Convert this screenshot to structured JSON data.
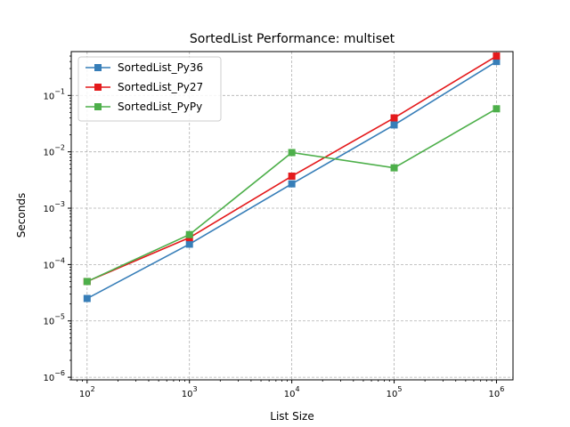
{
  "chart_data": {
    "type": "line",
    "title": "SortedList Performance: multiset",
    "xlabel": "List Size",
    "ylabel": "Seconds",
    "xscale": "log",
    "yscale": "log",
    "xlim": [
      70,
      1450000
    ],
    "ylim": [
      9e-07,
      0.6
    ],
    "x": [
      100,
      1000,
      10000,
      100000,
      1000000
    ],
    "grid": true,
    "legend": "upper-left",
    "x_ticks": [
      {
        "value": 100,
        "base": "10",
        "exp": "2"
      },
      {
        "value": 1000,
        "base": "10",
        "exp": "3"
      },
      {
        "value": 10000,
        "base": "10",
        "exp": "4"
      },
      {
        "value": 100000,
        "base": "10",
        "exp": "5"
      },
      {
        "value": 1000000,
        "base": "10",
        "exp": "6"
      }
    ],
    "y_ticks": [
      {
        "value": 1e-06,
        "base": "10",
        "exp": "−6"
      },
      {
        "value": 1e-05,
        "base": "10",
        "exp": "−5"
      },
      {
        "value": 0.0001,
        "base": "10",
        "exp": "−4"
      },
      {
        "value": 0.001,
        "base": "10",
        "exp": "−3"
      },
      {
        "value": 0.01,
        "base": "10",
        "exp": "−2"
      },
      {
        "value": 0.1,
        "base": "10",
        "exp": "−1"
      }
    ],
    "series": [
      {
        "name": "SortedList_Py36",
        "color": "#377eb8",
        "values": [
          2.5e-05,
          0.00023,
          0.0027,
          0.03,
          0.4
        ]
      },
      {
        "name": "SortedList_Py27",
        "color": "#e41a1c",
        "values": [
          5e-05,
          0.0003,
          0.0037,
          0.04,
          0.5
        ]
      },
      {
        "name": "SortedList_PyPy",
        "color": "#4daf4a",
        "values": [
          5e-05,
          0.00034,
          0.0097,
          0.0052,
          0.058
        ]
      }
    ]
  }
}
